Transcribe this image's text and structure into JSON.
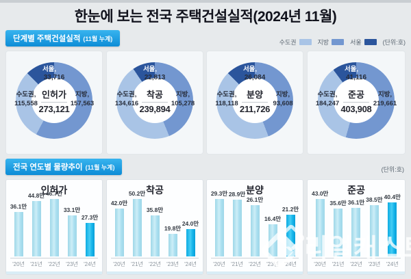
{
  "title": "한눈에 보는 전국 주택건설실적(2024년 11월)",
  "watermark": {
    "text": "리얼캐스트"
  },
  "colors": {
    "light": "#a9c4e6",
    "medium": "#7397d0",
    "dark": "#2b559c",
    "accent": "#1e9ae0"
  },
  "section1": {
    "header": "단계별 주택건설실적",
    "header_suffix": "(11월 누계)",
    "unit": "(단위:호)",
    "legend": [
      {
        "label": "수도권",
        "color": "#a9c4e6"
      },
      {
        "label": "지방",
        "color": "#7397d0"
      },
      {
        "label": "서울",
        "color": "#2b559c"
      }
    ],
    "donuts": [
      {
        "name": "인허가",
        "total": "273,121",
        "seoul_label": "서울,",
        "seoul_value": "33,716",
        "sudo_label": "수도권,",
        "sudo_value": "115,558",
        "jibang_label": "지방,",
        "jibang_value": "157,563"
      },
      {
        "name": "착공",
        "total": "239,894",
        "seoul_label": "서울,",
        "seoul_value": "22,813",
        "sudo_label": "수도권,",
        "sudo_value": "134,616",
        "jibang_label": "지방,",
        "jibang_value": "105,278"
      },
      {
        "name": "분양",
        "total": "211,726",
        "seoul_label": "서울,",
        "seoul_value": "26,084",
        "sudo_label": "수도권,",
        "sudo_value": "118,118",
        "jibang_label": "지방,",
        "jibang_value": "93,608"
      },
      {
        "name": "준공",
        "total": "403,908",
        "seoul_label": "서울,",
        "seoul_value": "41,116",
        "sudo_label": "수도권,",
        "sudo_value": "184,247",
        "jibang_label": "지방,",
        "jibang_value": "219,661"
      }
    ]
  },
  "section2": {
    "header": "전국 연도별 물량추이",
    "header_suffix": "(11월 누계)",
    "unit": "(단위:호)",
    "charts": [
      {
        "title": "인허가",
        "years": [
          "'20년",
          "'21년",
          "'22년",
          "'23년",
          "'24년"
        ],
        "labels": [
          "36.1만",
          "44.8만",
          "46.7만",
          "33.1만",
          "27.3만"
        ]
      },
      {
        "title": "착공",
        "years": [
          "'20년",
          "'21년",
          "'22년",
          "'23년",
          "'24년"
        ],
        "labels": [
          "42.0만",
          "50.2만",
          "35.8만",
          "19.8만",
          "24.0만"
        ]
      },
      {
        "title": "분양",
        "years": [
          "'20년",
          "'21년",
          "'22년",
          "'23년",
          "'24년"
        ],
        "labels": [
          "29.3만",
          "28.9만",
          "26.1만",
          "16.4만",
          "21.2만"
        ]
      },
      {
        "title": "준공",
        "years": [
          "'20년",
          "'21년",
          "'22년",
          "'23년",
          "'24년"
        ],
        "labels": [
          "43.0만",
          "35.6만",
          "36.1만",
          "38.5만",
          "40.4만"
        ]
      }
    ]
  },
  "chart_data": [
    {
      "type": "pie",
      "title": "인허가",
      "total": 273121,
      "slices": [
        {
          "label": "서울",
          "value": 33716
        },
        {
          "label": "수도권",
          "value": 115558
        },
        {
          "label": "지방",
          "value": 157563
        }
      ]
    },
    {
      "type": "pie",
      "title": "착공",
      "total": 239894,
      "slices": [
        {
          "label": "서울",
          "value": 22813
        },
        {
          "label": "수도권",
          "value": 134616
        },
        {
          "label": "지방",
          "value": 105278
        }
      ]
    },
    {
      "type": "pie",
      "title": "분양",
      "total": 211726,
      "slices": [
        {
          "label": "서울",
          "value": 26084
        },
        {
          "label": "수도권",
          "value": 118118
        },
        {
          "label": "지방",
          "value": 93608
        }
      ]
    },
    {
      "type": "pie",
      "title": "준공",
      "total": 403908,
      "slices": [
        {
          "label": "서울",
          "value": 41116
        },
        {
          "label": "수도권",
          "value": 184247
        },
        {
          "label": "지방",
          "value": 219661
        }
      ]
    },
    {
      "type": "bar",
      "title": "인허가",
      "categories": [
        "'20년",
        "'21년",
        "'22년",
        "'23년",
        "'24년"
      ],
      "values": [
        36.1,
        44.8,
        46.7,
        33.1,
        27.3
      ],
      "unit": "만 호",
      "highlight": "'24년"
    },
    {
      "type": "bar",
      "title": "착공",
      "categories": [
        "'20년",
        "'21년",
        "'22년",
        "'23년",
        "'24년"
      ],
      "values": [
        42.0,
        50.2,
        35.8,
        19.8,
        24.0
      ],
      "unit": "만 호",
      "highlight": "'24년"
    },
    {
      "type": "bar",
      "title": "분양",
      "categories": [
        "'20년",
        "'21년",
        "'22년",
        "'23년",
        "'24년"
      ],
      "values": [
        29.3,
        28.9,
        26.1,
        16.4,
        21.2
      ],
      "unit": "만 호",
      "highlight": "'24년"
    },
    {
      "type": "bar",
      "title": "준공",
      "categories": [
        "'20년",
        "'21년",
        "'22년",
        "'23년",
        "'24년"
      ],
      "values": [
        43.0,
        35.6,
        36.1,
        38.5,
        40.4
      ],
      "unit": "만 호",
      "highlight": "'24년"
    }
  ]
}
